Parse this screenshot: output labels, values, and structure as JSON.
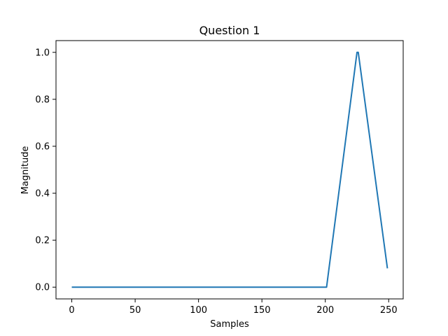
{
  "chart_data": {
    "type": "line",
    "title": "Question 1",
    "xlabel": "Samples",
    "ylabel": "Magnitude",
    "xlim": [
      -12.45,
      261.45
    ],
    "ylim": [
      -0.05,
      1.05
    ],
    "xticks": [
      0,
      50,
      100,
      150,
      200,
      250
    ],
    "xtick_labels": [
      "0",
      "50",
      "100",
      "150",
      "200",
      "250"
    ],
    "yticks": [
      0.0,
      0.2,
      0.4,
      0.6,
      0.8,
      1.0
    ],
    "ytick_labels": [
      "0.0",
      "0.2",
      "0.4",
      "0.6",
      "0.8",
      "1.0"
    ],
    "grid": false,
    "line_color": "#1f77b4",
    "series": [
      {
        "x": [
          0,
          201,
          225,
          226,
          249
        ],
        "y": [
          0.0,
          0.0,
          1.0,
          1.0,
          0.08
        ]
      }
    ]
  }
}
